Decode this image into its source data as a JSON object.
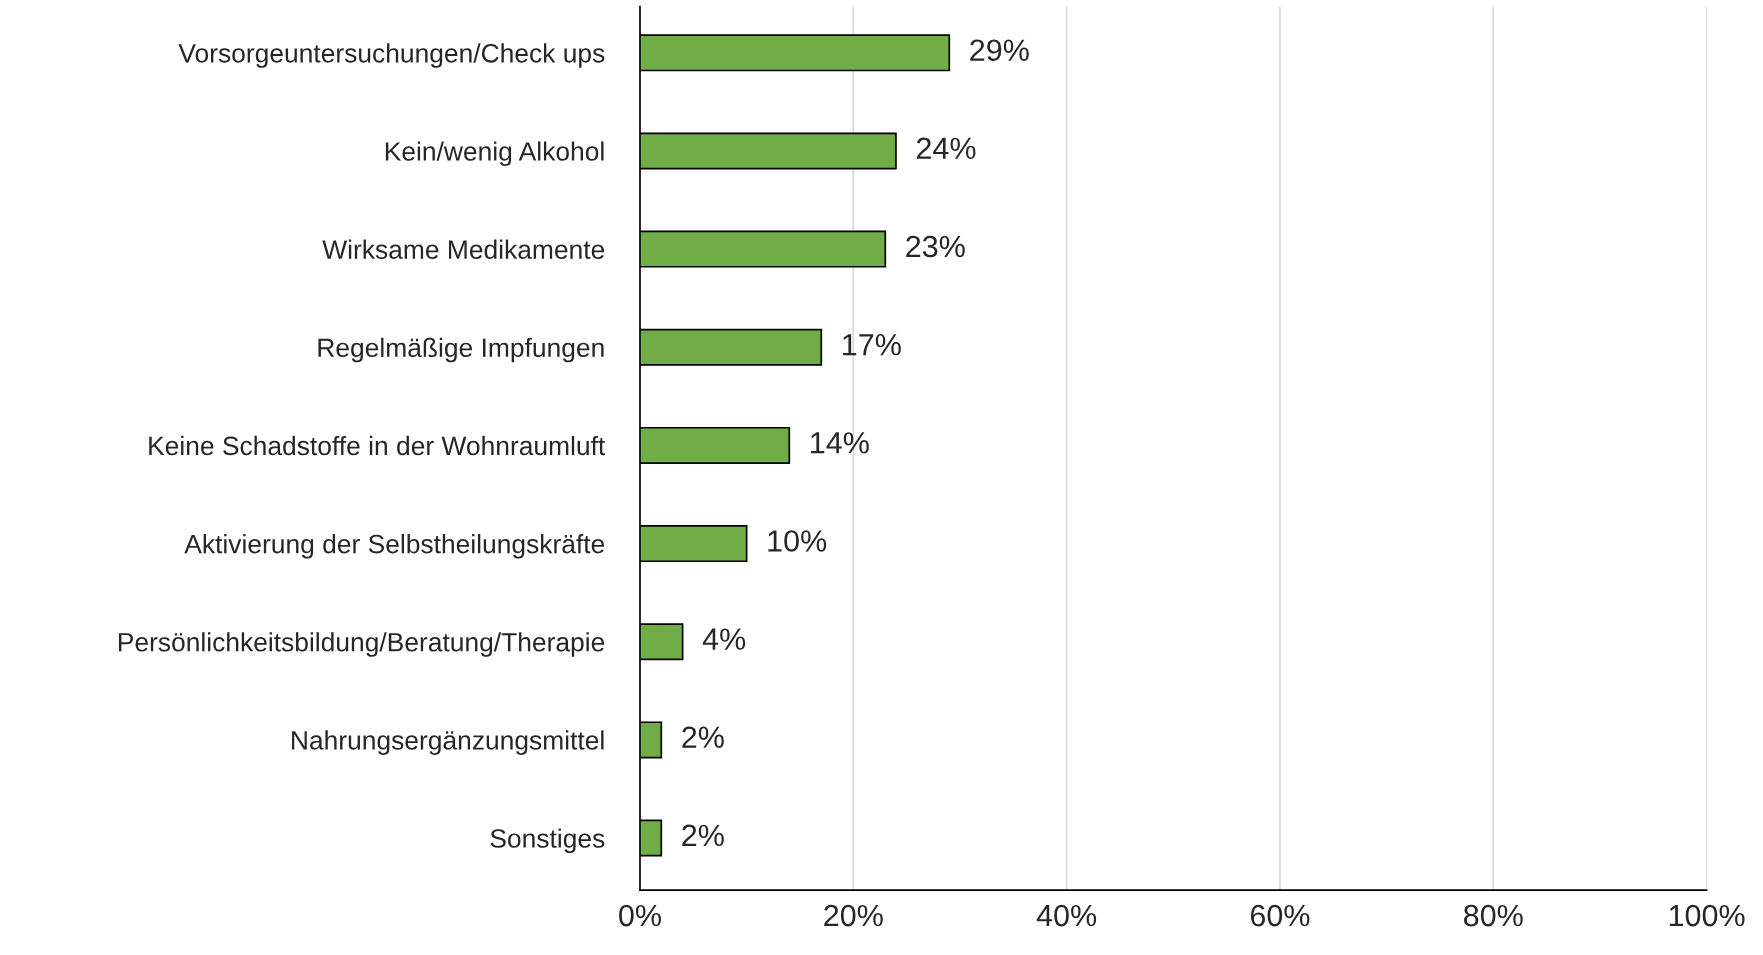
{
  "chart_data": {
    "type": "bar",
    "orientation": "horizontal",
    "categories": [
      "Vorsorgeuntersuchungen/Check ups",
      "Kein/wenig Alkohol",
      "Wirksame Medikamente",
      "Regelmäßige Impfungen",
      "Keine Schadstoffe in der Wohnraumluft",
      "Aktivierung der Selbstheilungskräfte",
      "Persönlichkeitsbildung/Beratung/Therapie",
      "Nahrungsergänzungsmittel",
      "Sonstiges"
    ],
    "values": [
      29,
      24,
      23,
      17,
      14,
      10,
      4,
      2,
      2
    ],
    "value_labels": [
      "29%",
      "24%",
      "23%",
      "17%",
      "14%",
      "10%",
      "4%",
      "2%",
      "2%"
    ],
    "color": "#70ad47",
    "xlim": [
      0,
      100
    ],
    "xticks": [
      {
        "value": 0,
        "label": "0%"
      },
      {
        "value": 20,
        "label": "20%"
      },
      {
        "value": 40,
        "label": "40%"
      },
      {
        "value": 60,
        "label": "60%"
      },
      {
        "value": 80,
        "label": "80%"
      },
      {
        "value": 100,
        "label": "100%"
      }
    ],
    "grid": "x",
    "legend": false
  }
}
